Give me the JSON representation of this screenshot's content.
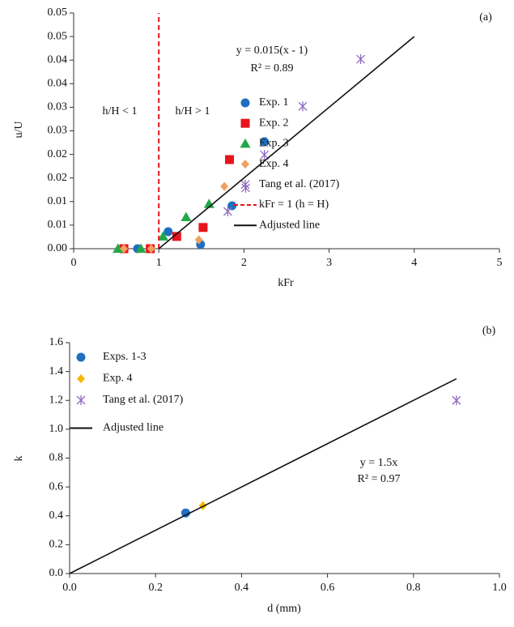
{
  "chart_data": [
    {
      "type": "scatter",
      "panel_label": "(a)",
      "x_label": "kFr",
      "y_label": "u/U",
      "xlim": [
        0,
        5
      ],
      "xticks": [
        0,
        1,
        2,
        3,
        4,
        5
      ],
      "ylim": [
        0,
        0.05
      ],
      "yticks": [
        {
          "value": 0,
          "label": "0.00"
        },
        {
          "value": 0.005,
          "label": "0.01"
        },
        {
          "value": 0.01,
          "label": "0.01"
        },
        {
          "value": 0.015,
          "label": "0.02"
        },
        {
          "value": 0.02,
          "label": "0.02"
        },
        {
          "value": 0.025,
          "label": "0.03"
        },
        {
          "value": 0.03,
          "label": "0.03"
        },
        {
          "value": 0.035,
          "label": "0.04"
        },
        {
          "value": 0.04,
          "label": "0.04"
        },
        {
          "value": 0.045,
          "label": "0.05"
        },
        {
          "value": 0.05,
          "label": "0.05"
        }
      ],
      "annotations": [
        "y = 0.015(x - 1)",
        "R² = 0.89",
        "h/H < 1",
        "h/H > 1"
      ],
      "series": [
        {
          "name": "Exp. 1",
          "marker": "circle",
          "color": "#1f6fbf",
          "x": [
            0.75,
            1.11,
            1.49,
            1.86,
            2.24
          ],
          "values": [
            0,
            0.0036,
            0.0009,
            0.0091,
            0.0227
          ]
        },
        {
          "name": "Exp. 2",
          "marker": "square",
          "color": "#e8141c",
          "x": [
            0.59,
            0.9,
            1.21,
            1.52,
            1.83
          ],
          "values": [
            0,
            0,
            0.0026,
            0.0045,
            0.0189
          ]
        },
        {
          "name": "Exp. 3",
          "marker": "triangle",
          "color": "#22a84a",
          "x": [
            0.52,
            0.79,
            1.05,
            1.32,
            1.59
          ],
          "values": [
            0,
            0,
            0.0026,
            0.0067,
            0.0095
          ]
        },
        {
          "name": "Exp. 4",
          "marker": "diamond",
          "color": "#f0a060",
          "x": [
            0.59,
            0.91,
            1.47,
            1.77
          ],
          "values": [
            0,
            0,
            0.0019,
            0.0132
          ]
        },
        {
          "name": "Tang et al. (2017)",
          "marker": "asterisk",
          "color": "#8e6bbf",
          "x": [
            1.81,
            2.02,
            2.24,
            2.69,
            3.37
          ],
          "values": [
            0.0079,
            0.0129,
            0.0199,
            0.0302,
            0.0402
          ]
        },
        {
          "name": "kFr = 1 (h = H)",
          "marker": "line",
          "linestyle": "dashed",
          "color": "#e8141c",
          "x": [
            1,
            1
          ],
          "values": [
            0,
            0.05
          ]
        },
        {
          "name": "Adjusted line",
          "marker": "line",
          "linestyle": "solid",
          "color": "#111111",
          "x": [
            1,
            4
          ],
          "values": [
            0,
            0.045
          ]
        }
      ]
    },
    {
      "type": "scatter",
      "panel_label": "(b)",
      "x_label": "d (mm)",
      "y_label": "k",
      "xlim": [
        0,
        1
      ],
      "xticks": [
        {
          "value": 0,
          "label": "0.0"
        },
        0.2,
        0.4,
        0.6,
        0.8,
        {
          "value": 1,
          "label": "1.0"
        }
      ],
      "ylim": [
        0,
        1.6
      ],
      "yticks": [
        {
          "value": 0,
          "label": "0.0"
        },
        0.2,
        0.4,
        0.6,
        0.8,
        {
          "value": 1,
          "label": "1.0"
        },
        1.2,
        1.4,
        1.6
      ],
      "annotations": [
        "y = 1.5x",
        "R² = 0.97"
      ],
      "series": [
        {
          "name": "Exps. 1-3",
          "marker": "circle",
          "color": "#1f6fbf",
          "x": [
            0.27
          ],
          "values": [
            0.42
          ]
        },
        {
          "name": "Exp. 4",
          "marker": "diamond",
          "color": "#f5b800",
          "x": [
            0.31
          ],
          "values": [
            0.47
          ]
        },
        {
          "name": "Tang et al. (2017)",
          "marker": "asterisk",
          "color": "#8e6bbf",
          "x": [
            0.9
          ],
          "values": [
            1.2
          ]
        },
        {
          "name": "Adjusted line",
          "marker": "line",
          "linestyle": "solid",
          "color": "#111111",
          "x": [
            0,
            0.9
          ],
          "values": [
            0,
            1.35
          ]
        }
      ]
    }
  ]
}
